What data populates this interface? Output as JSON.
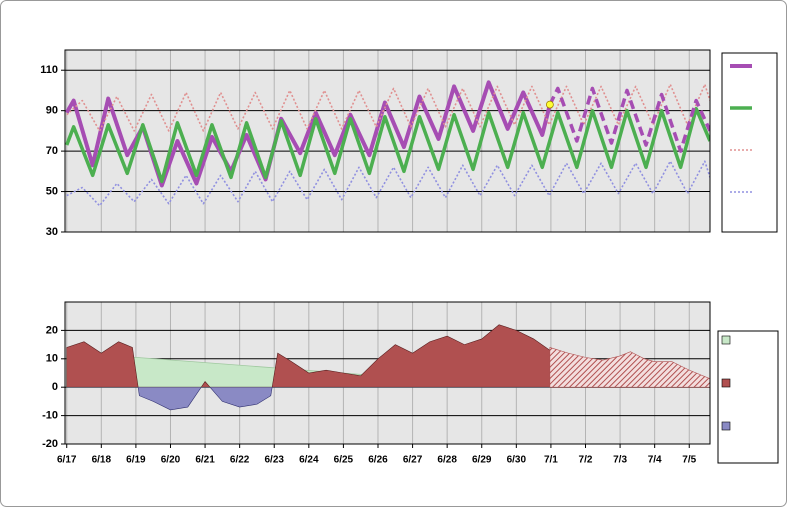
{
  "chart_data": [
    {
      "type": "line",
      "xlim": [
        -0.05,
        18.6
      ],
      "xticks": [
        0,
        1,
        2,
        3,
        4,
        5,
        6,
        7,
        8,
        9,
        10,
        11,
        12,
        13,
        14,
        15,
        16,
        17,
        18
      ],
      "xtick_labels": false,
      "ylim": [
        30,
        120
      ],
      "yticks": [
        30,
        50,
        70,
        90,
        110
      ],
      "grid": true,
      "background": "#e6e6e6",
      "series": [
        {
          "color": "#a64db3",
          "style": "solid",
          "width": 4,
          "x": [
            0,
            0.2,
            0.75,
            1.2,
            1.75,
            2.2,
            2.75,
            3.2,
            3.75,
            4.2,
            4.75,
            5.2,
            5.75,
            6.2,
            6.75,
            7.2,
            7.75,
            8.2,
            8.75,
            9.2,
            9.75,
            10.2,
            10.75,
            11.2,
            11.75,
            12.2,
            12.75,
            13.2,
            13.75,
            13.97
          ],
          "values": [
            89,
            95,
            63,
            96,
            68,
            82,
            53,
            75,
            54,
            77,
            60,
            78,
            56,
            86,
            69,
            89,
            68,
            88,
            68,
            94,
            72,
            97,
            76,
            102,
            80,
            104,
            81,
            99,
            78,
            93
          ]
        },
        {
          "color": "#4caf50",
          "style": "solid",
          "width": 3.5,
          "x": [
            0,
            0.2,
            0.75,
            1.2,
            1.75,
            2.2,
            2.75,
            3.2,
            3.75,
            4.2,
            4.75,
            5.2,
            5.75,
            6.2,
            6.75,
            7.2,
            7.75,
            8.2,
            8.75,
            9.2,
            9.75,
            10.2,
            10.75,
            11.2,
            11.75,
            12.2,
            12.75,
            13.2,
            13.75,
            14.2,
            14.75,
            15.2,
            15.75,
            16.2,
            16.75,
            17.2,
            17.75,
            18.2,
            18.6
          ],
          "values": [
            73,
            82,
            58,
            83,
            59,
            83,
            55,
            84,
            58,
            83,
            57,
            84,
            57,
            85,
            58,
            86,
            59,
            86,
            59,
            87,
            60,
            87,
            61,
            88,
            61,
            89,
            62,
            89,
            62,
            89,
            62,
            90,
            62,
            90,
            62,
            90,
            62,
            91,
            75
          ]
        },
        {
          "color": "#e09090",
          "style": "dotted",
          "width": 1.6,
          "x": [
            0,
            0.45,
            0.95,
            1.45,
            1.95,
            2.45,
            2.95,
            3.45,
            3.95,
            4.45,
            4.95,
            5.45,
            5.95,
            6.45,
            6.95,
            7.45,
            7.95,
            8.45,
            8.95,
            9.45,
            9.95,
            10.45,
            10.95,
            11.45,
            11.95,
            12.45,
            12.95,
            13.45,
            13.95,
            14.45,
            14.95,
            15.45,
            15.95,
            16.45,
            16.95,
            17.45,
            17.95,
            18.45,
            18.6
          ],
          "values": [
            88,
            95,
            80,
            97,
            80,
            98,
            80,
            99,
            80,
            99,
            81,
            99,
            81,
            100,
            81,
            100,
            81,
            100,
            82,
            101,
            82,
            101,
            82,
            101,
            82,
            102,
            83,
            102,
            83,
            102,
            83,
            102,
            83,
            102,
            83,
            103,
            83,
            103,
            95
          ]
        },
        {
          "color": "#9090e0",
          "style": "dotted",
          "width": 1.6,
          "x": [
            0,
            0.45,
            0.95,
            1.45,
            1.95,
            2.45,
            2.95,
            3.45,
            3.95,
            4.45,
            4.95,
            5.45,
            5.95,
            6.45,
            6.95,
            7.45,
            7.95,
            8.45,
            8.95,
            9.45,
            9.95,
            10.45,
            10.95,
            11.45,
            11.95,
            12.45,
            12.95,
            13.45,
            13.95,
            14.45,
            14.95,
            15.45,
            15.95,
            16.45,
            16.95,
            17.45,
            17.95,
            18.45,
            18.6
          ],
          "values": [
            48,
            52,
            43,
            54,
            45,
            56,
            44,
            58,
            44,
            58,
            45,
            60,
            45,
            60,
            46,
            61,
            46,
            62,
            47,
            62,
            47,
            62,
            47,
            63,
            48,
            63,
            48,
            63,
            48,
            64,
            49,
            64,
            49,
            64,
            49,
            65,
            49,
            65,
            57
          ]
        },
        {
          "color": "#a64db3",
          "style": "dashed",
          "width": 3.5,
          "in_legend": false,
          "x": [
            13.97,
            14.2,
            14.75,
            15.2,
            15.75,
            16.2,
            16.75,
            17.2,
            17.75,
            18.2,
            18.6
          ],
          "values": [
            93,
            101,
            75,
            101,
            74,
            100,
            73,
            98,
            70,
            95,
            80
          ]
        }
      ],
      "markers": [
        {
          "x": 13.97,
          "y": 93,
          "color": "#ffff33"
        }
      ]
    },
    {
      "type": "area",
      "xlim": [
        -0.05,
        18.6
      ],
      "xticks": [
        {
          "value": 0,
          "label": "6/17"
        },
        {
          "value": 1,
          "label": "6/18"
        },
        {
          "value": 2,
          "label": "6/19"
        },
        {
          "value": 3,
          "label": "6/20"
        },
        {
          "value": 4,
          "label": "6/21"
        },
        {
          "value": 5,
          "label": "6/22"
        },
        {
          "value": 6,
          "label": "6/23"
        },
        {
          "value": 7,
          "label": "6/24"
        },
        {
          "value": 8,
          "label": "6/25"
        },
        {
          "value": 9,
          "label": "6/26"
        },
        {
          "value": 10,
          "label": "6/27"
        },
        {
          "value": 11,
          "label": "6/28"
        },
        {
          "value": 12,
          "label": "6/29"
        },
        {
          "value": 13,
          "label": "6/30"
        },
        {
          "value": 14,
          "label": "7/1"
        },
        {
          "value": 15,
          "label": "7/2"
        },
        {
          "value": 16,
          "label": "7/3"
        },
        {
          "value": 17,
          "label": "7/4"
        },
        {
          "value": 18,
          "label": "7/5"
        }
      ],
      "xtick_labels": true,
      "ylim": [
        -20,
        30
      ],
      "yticks": [
        -20,
        -10,
        0,
        10,
        20
      ],
      "grid": true,
      "background": "#e6e6e6",
      "series": [
        {
          "color": "#c8e8c8",
          "x": [
            0,
            2,
            8.5,
            13.97
          ],
          "values": [
            11,
            10.5,
            4.5,
            7.5
          ]
        },
        {
          "color": "#b05050",
          "negative_color": "#8a8ac4",
          "x": [
            0,
            0.5,
            1,
            1.5,
            1.9,
            2.1,
            2.5,
            3,
            3.5,
            4,
            4.5,
            5,
            5.5,
            5.9,
            6.1,
            6.5,
            7,
            7.5,
            8,
            8.5,
            9,
            9.5,
            10,
            10.5,
            11,
            11.5,
            12,
            12.5,
            13,
            13.5,
            13.97
          ],
          "values": [
            14,
            16,
            12,
            16,
            14,
            -3,
            -5,
            -8,
            -7,
            2,
            -5,
            -7,
            -6,
            -3,
            12,
            9,
            5,
            6,
            5,
            4,
            10,
            15,
            12,
            16,
            18,
            15,
            17,
            22,
            20,
            17,
            13
          ]
        },
        {
          "color": "#b05050",
          "hatch": true,
          "in_legend": false,
          "x": [
            13.97,
            14.5,
            15,
            15.5,
            16,
            16.3,
            16.7,
            17,
            17.5,
            18,
            18.6
          ],
          "values": [
            14,
            12,
            10.5,
            9.5,
            11,
            12.5,
            10,
            9,
            9,
            6,
            3
          ]
        }
      ]
    }
  ]
}
